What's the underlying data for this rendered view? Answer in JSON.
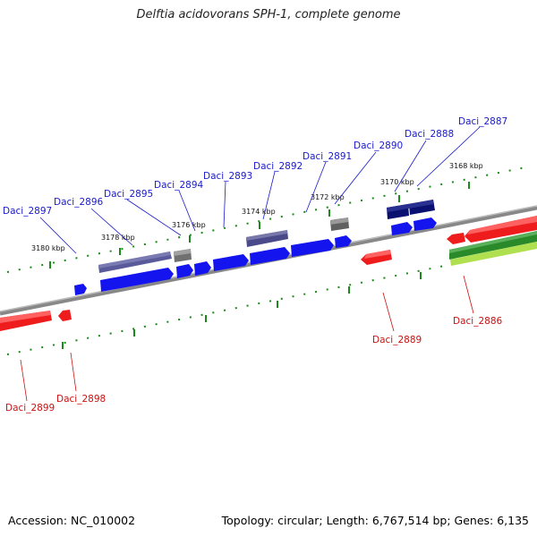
{
  "title": "Delftia acidovorans SPH-1, complete genome",
  "footer": {
    "accession_text": "Accession: NC_010002",
    "topology_text": "Topology: circular; Length: 6,767,514 bp; Genes: 6,135"
  },
  "scale_labels": [
    "3180 kbp",
    "3178 kbp",
    "3176 kbp",
    "3174 kbp",
    "3172 kbp",
    "3170 kbp",
    "3168 kbp"
  ],
  "genes_forward": [
    "Daci_2897",
    "Daci_2896",
    "Daci_2895",
    "Daci_2894",
    "Daci_2893",
    "Daci_2892",
    "Daci_2891",
    "Daci_2890",
    "Daci_2888",
    "Daci_2887"
  ],
  "genes_reverse": [
    "Daci_2899",
    "Daci_2898",
    "Daci_2889",
    "Daci_2886"
  ],
  "colors": {
    "forward_label": "#1a1acc",
    "reverse_label": "#cc1111",
    "cds_blue": "#1414ee",
    "cds_dark_blue": "#0a1070",
    "cds_slate": "#4a4a8a",
    "cds_gray": "#6e6e6e",
    "cds_red": "#ee1c1c",
    "cds_green": "#2a8a2a",
    "cds_light_green": "#b0e050",
    "backbone": "#888888",
    "ticks": "#1a8a1a"
  }
}
